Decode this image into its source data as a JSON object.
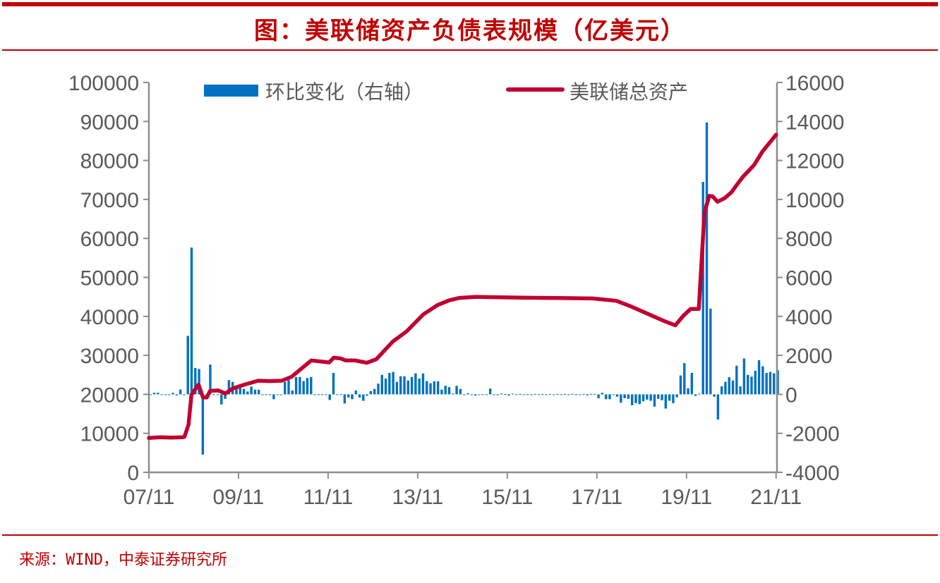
{
  "title": "图：美联储资产负债表规模（亿美元）",
  "source": "来源：WIND，中泰证券研究所",
  "chart_data": {
    "type": "bar+line",
    "title": "图：美联储资产负债表规模（亿美元）",
    "legend_position": "top",
    "x_tick_labels": [
      "07/11",
      "09/11",
      "11/11",
      "13/11",
      "15/11",
      "17/11",
      "19/11",
      "21/11"
    ],
    "x_start": "2007-11",
    "x_unit": "month",
    "y_left": {
      "range": [
        0,
        100000
      ],
      "ticks": [
        "0",
        "10000",
        "20000",
        "30000",
        "40000",
        "50000",
        "60000",
        "70000",
        "80000",
        "90000",
        "100000"
      ]
    },
    "y_right": {
      "range": [
        -4000,
        16000
      ],
      "ticks": [
        "-4000",
        "-2000",
        "0",
        "2000",
        "4000",
        "6000",
        "8000",
        "10000",
        "12000",
        "14000",
        "16000"
      ]
    },
    "colors": {
      "bars": "#0070C0",
      "line": "#C00030",
      "axis": "#8C8C8C"
    },
    "series": [
      {
        "name": "环比变化（右轴）",
        "type": "bar",
        "axis": "right",
        "values": [
          0,
          80,
          80,
          -30,
          -20,
          -20,
          80,
          -50,
          250,
          -40,
          3000,
          7530,
          1350,
          1300,
          -3090,
          0,
          1530,
          -20,
          -20,
          -520,
          -230,
          730,
          640,
          330,
          330,
          280,
          150,
          400,
          240,
          240,
          0,
          -20,
          -20,
          -250,
          -10,
          -10,
          640,
          730,
          200,
          890,
          890,
          680,
          840,
          890,
          0,
          -30,
          -30,
          -30,
          -290,
          1100,
          -30,
          -20,
          -470,
          -160,
          -250,
          200,
          -160,
          -330,
          -70,
          170,
          280,
          550,
          1000,
          810,
          1100,
          1150,
          640,
          930,
          930,
          710,
          890,
          1080,
          810,
          1070,
          680,
          570,
          670,
          670,
          240,
          440,
          370,
          40,
          440,
          280,
          0,
          60,
          -20,
          -60,
          -20,
          -20,
          -20,
          300,
          -40,
          -40,
          40,
          20,
          -60,
          40,
          -20,
          20,
          -20,
          -20,
          -40,
          20,
          -20,
          20,
          -20,
          20,
          -20,
          20,
          -20,
          20,
          -20,
          20,
          -40,
          0,
          20,
          -50,
          20,
          20,
          -200,
          80,
          -250,
          -250,
          0,
          -120,
          -430,
          -200,
          -230,
          -560,
          -450,
          -500,
          -350,
          -270,
          -330,
          -630,
          -230,
          -300,
          -730,
          -330,
          -450,
          -150,
          970,
          1600,
          310,
          1100,
          -80,
          30,
          10900,
          13950,
          4400,
          -120,
          -1290,
          410,
          640,
          880,
          710,
          1470,
          410,
          1840,
          1000,
          910,
          1210,
          1750,
          1440,
          1100,
          1150,
          1080,
          1240
        ]
      },
      {
        "name": "美联储总资产",
        "type": "line",
        "axis": "left",
        "points": [
          [
            0,
            8800
          ],
          [
            3,
            9000
          ],
          [
            6,
            8900
          ],
          [
            9,
            9000
          ],
          [
            9.5,
            9100
          ],
          [
            10.6,
            12200
          ],
          [
            11.4,
            19900
          ],
          [
            13.3,
            22500
          ],
          [
            14.5,
            19200
          ],
          [
            15.5,
            19200
          ],
          [
            16.4,
            20900
          ],
          [
            18.6,
            21000
          ],
          [
            20.5,
            20200
          ],
          [
            22.4,
            21500
          ],
          [
            25.6,
            22500
          ],
          [
            29.3,
            23500
          ],
          [
            32.5,
            23400
          ],
          [
            35.6,
            23500
          ],
          [
            38.2,
            24500
          ],
          [
            42,
            27500
          ],
          [
            43.5,
            28700
          ],
          [
            48.3,
            28200
          ],
          [
            49.5,
            29400
          ],
          [
            51.4,
            29200
          ],
          [
            52.7,
            28700
          ],
          [
            55.2,
            28700
          ],
          [
            58.4,
            28100
          ],
          [
            60.9,
            29000
          ],
          [
            65.3,
            33500
          ],
          [
            69.1,
            36200
          ],
          [
            73.5,
            40500
          ],
          [
            77.3,
            42900
          ],
          [
            80.4,
            44100
          ],
          [
            83,
            44700
          ],
          [
            87.4,
            45000
          ],
          [
            100,
            44800
          ],
          [
            110,
            44700
          ],
          [
            118.9,
            44600
          ],
          [
            125.2,
            44000
          ],
          [
            129,
            42600
          ],
          [
            134.7,
            40200
          ],
          [
            137.8,
            38900
          ],
          [
            141,
            37700
          ],
          [
            143.2,
            40200
          ],
          [
            145.1,
            41900
          ],
          [
            147.3,
            41900
          ],
          [
            148.8,
            66600
          ],
          [
            150.1,
            70900
          ],
          [
            151,
            70800
          ],
          [
            152.3,
            69400
          ],
          [
            154.2,
            70300
          ],
          [
            156.1,
            71900
          ],
          [
            157.6,
            73900
          ],
          [
            159.2,
            75900
          ],
          [
            162.1,
            78800
          ],
          [
            164.3,
            82200
          ],
          [
            168,
            86600
          ]
        ]
      }
    ]
  }
}
